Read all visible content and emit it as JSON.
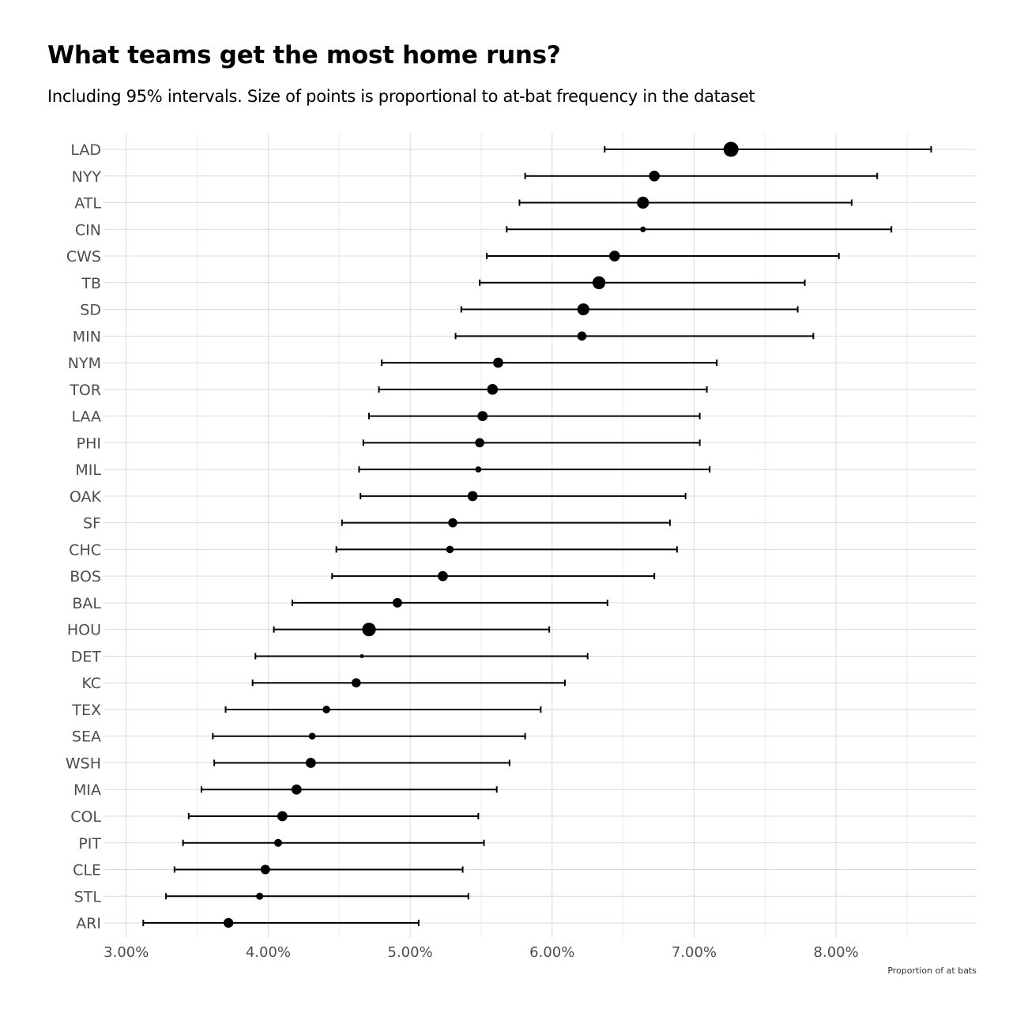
{
  "chart_data": {
    "type": "scatter",
    "title": "What teams get the most home runs?",
    "subtitle": "Including 95% intervals. Size of points is proportional to at-bat frequency in the dataset",
    "xlabel": "Proportion of at bats",
    "ylabel": "",
    "xlim": [
      2.84,
      8.99
    ],
    "x_ticks": [
      3,
      4,
      5,
      6,
      7,
      8
    ],
    "x_tick_labels": [
      "3.00%",
      "4.00%",
      "5.00%",
      "6.00%",
      "7.00%",
      "8.00%"
    ],
    "grid": true,
    "legend": "none",
    "point_color": "#000000",
    "categories": [
      "LAD",
      "NYY",
      "ATL",
      "CIN",
      "CWS",
      "TB",
      "SD",
      "MIN",
      "NYM",
      "TOR",
      "LAA",
      "PHI",
      "MIL",
      "OAK",
      "SF",
      "CHC",
      "BOS",
      "BAL",
      "HOU",
      "DET",
      "KC",
      "TEX",
      "SEA",
      "WSH",
      "MIA",
      "COL",
      "PIT",
      "CLE",
      "STL",
      "ARI"
    ],
    "estimate": [
      7.26,
      6.72,
      6.64,
      6.64,
      6.44,
      6.33,
      6.22,
      6.21,
      5.62,
      5.58,
      5.51,
      5.49,
      5.48,
      5.44,
      5.3,
      5.28,
      5.23,
      4.91,
      4.71,
      4.66,
      4.62,
      4.41,
      4.31,
      4.3,
      4.2,
      4.1,
      4.07,
      3.98,
      3.94,
      3.72
    ],
    "lower": [
      6.37,
      5.81,
      5.77,
      5.68,
      5.54,
      5.49,
      5.36,
      5.32,
      4.8,
      4.78,
      4.71,
      4.67,
      4.64,
      4.65,
      4.52,
      4.48,
      4.45,
      4.17,
      4.04,
      3.91,
      3.89,
      3.7,
      3.61,
      3.62,
      3.53,
      3.44,
      3.4,
      3.34,
      3.28,
      3.12
    ],
    "upper": [
      8.67,
      8.29,
      8.11,
      8.39,
      8.02,
      7.78,
      7.73,
      7.84,
      7.16,
      7.09,
      7.04,
      7.04,
      7.11,
      6.94,
      6.83,
      6.88,
      6.72,
      6.39,
      5.98,
      6.25,
      6.09,
      5.92,
      5.81,
      5.7,
      5.61,
      5.48,
      5.52,
      5.37,
      5.41,
      5.06
    ],
    "point_size": [
      9.5,
      6.8,
      7.6,
      3.6,
      6.8,
      8.2,
      7.6,
      5.8,
      6.4,
      6.8,
      6.4,
      5.8,
      3.9,
      6.4,
      5.8,
      4.8,
      6.4,
      6.0,
      8.6,
      2.5,
      5.8,
      4.8,
      4.3,
      6.4,
      6.4,
      6.4,
      5.0,
      6.0,
      4.5,
      6.2
    ]
  }
}
